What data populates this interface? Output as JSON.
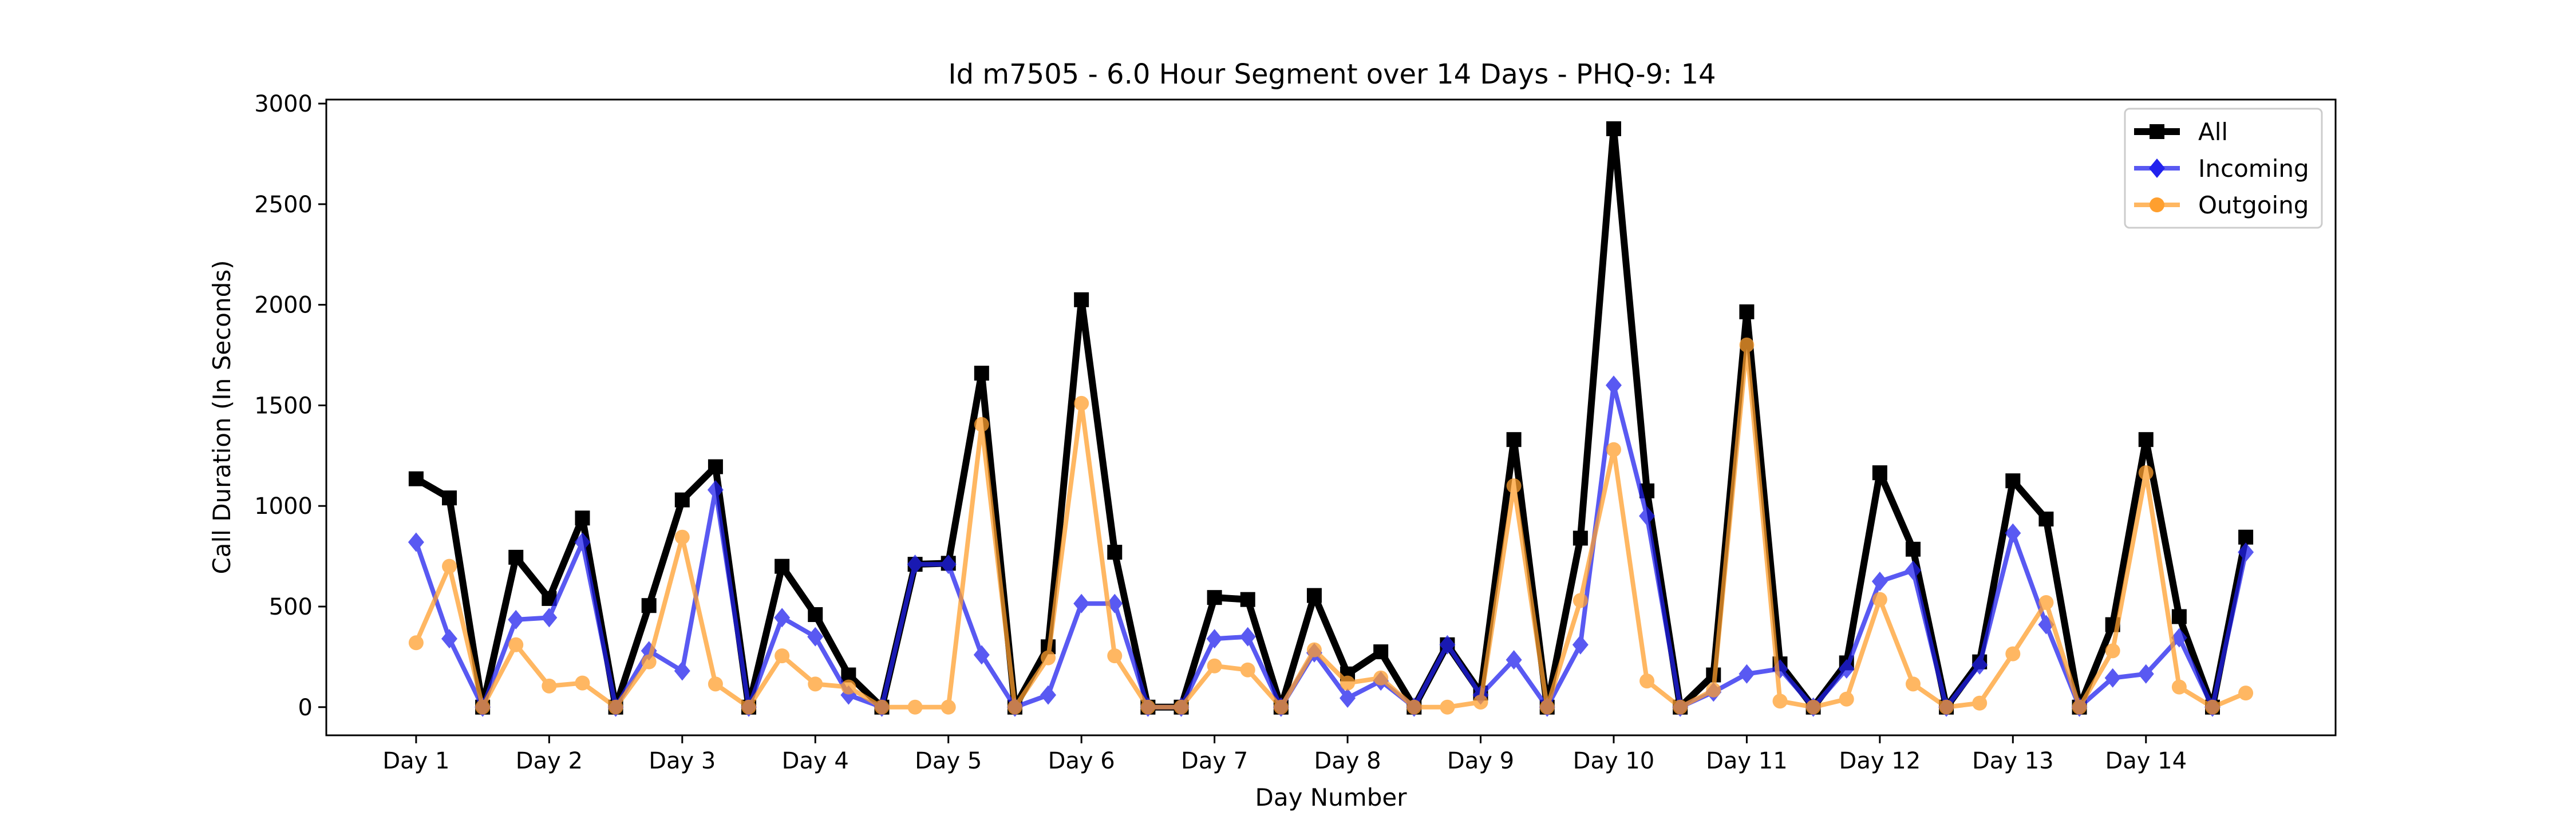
{
  "chart_data": {
    "type": "line",
    "title": "Id m7505 - 6.0 Hour Segment over 14 Days - PHQ-9: 14",
    "xlabel": "Day Number",
    "ylabel": "Call Duration (In Seconds)",
    "x_tick_labels": [
      "Day 1",
      "Day 2",
      "Day 3",
      "Day 4",
      "Day 5",
      "Day 6",
      "Day 7",
      "Day 8",
      "Day 9",
      "Day 10",
      "Day 11",
      "Day 12",
      "Day 13",
      "Day 14"
    ],
    "y_ticks": [
      0,
      500,
      1000,
      1500,
      2000,
      2500,
      3000
    ],
    "ylim": [
      -140,
      3020
    ],
    "x_index_range": [
      -2.7,
      57.7
    ],
    "x": [
      0,
      1,
      2,
      3,
      4,
      5,
      6,
      7,
      8,
      9,
      10,
      11,
      12,
      13,
      14,
      15,
      16,
      17,
      18,
      19,
      20,
      21,
      22,
      23,
      24,
      25,
      26,
      27,
      28,
      29,
      30,
      31,
      32,
      33,
      34,
      35,
      36,
      37,
      38,
      39,
      40,
      41,
      42,
      43,
      44,
      45,
      46,
      47,
      48,
      49,
      50,
      51,
      52,
      53,
      54,
      55
    ],
    "legend_position": "top-right",
    "grid": false,
    "series": [
      {
        "name": "All",
        "color": "#000000",
        "marker": "square",
        "values": [
          1135,
          1040,
          0,
          745,
          540,
          940,
          0,
          505,
          1030,
          1195,
          0,
          700,
          460,
          160,
          0,
          710,
          715,
          1660,
          0,
          300,
          2025,
          770,
          0,
          0,
          545,
          535,
          0,
          555,
          165,
          275,
          0,
          310,
          70,
          1330,
          0,
          840,
          2875,
          1075,
          0,
          160,
          1965,
          215,
          0,
          220,
          1165,
          785,
          0,
          225,
          1125,
          935,
          0,
          410,
          1330,
          450,
          0,
          845
        ]
      },
      {
        "name": "Incoming",
        "color": "#2222ee",
        "marker": "diamond",
        "values": [
          820,
          340,
          0,
          435,
          445,
          820,
          0,
          280,
          180,
          1080,
          0,
          445,
          350,
          60,
          0,
          710,
          710,
          260,
          0,
          60,
          515,
          515,
          0,
          0,
          340,
          350,
          0,
          270,
          45,
          130,
          0,
          310,
          60,
          235,
          0,
          310,
          1600,
          950,
          0,
          75,
          165,
          190,
          0,
          190,
          625,
          680,
          0,
          210,
          865,
          410,
          0,
          145,
          165,
          345,
          0,
          770
        ]
      },
      {
        "name": "Outgoing",
        "color": "#ff9f2e",
        "marker": "circle",
        "values": [
          320,
          700,
          0,
          310,
          105,
          120,
          0,
          225,
          845,
          115,
          0,
          255,
          115,
          100,
          0,
          0,
          0,
          1405,
          0,
          245,
          1510,
          255,
          0,
          0,
          205,
          185,
          0,
          285,
          120,
          145,
          0,
          0,
          25,
          1100,
          0,
          530,
          1280,
          130,
          0,
          85,
          1800,
          30,
          0,
          40,
          535,
          115,
          0,
          20,
          265,
          520,
          0,
          280,
          1165,
          100,
          0,
          70
        ]
      }
    ]
  }
}
